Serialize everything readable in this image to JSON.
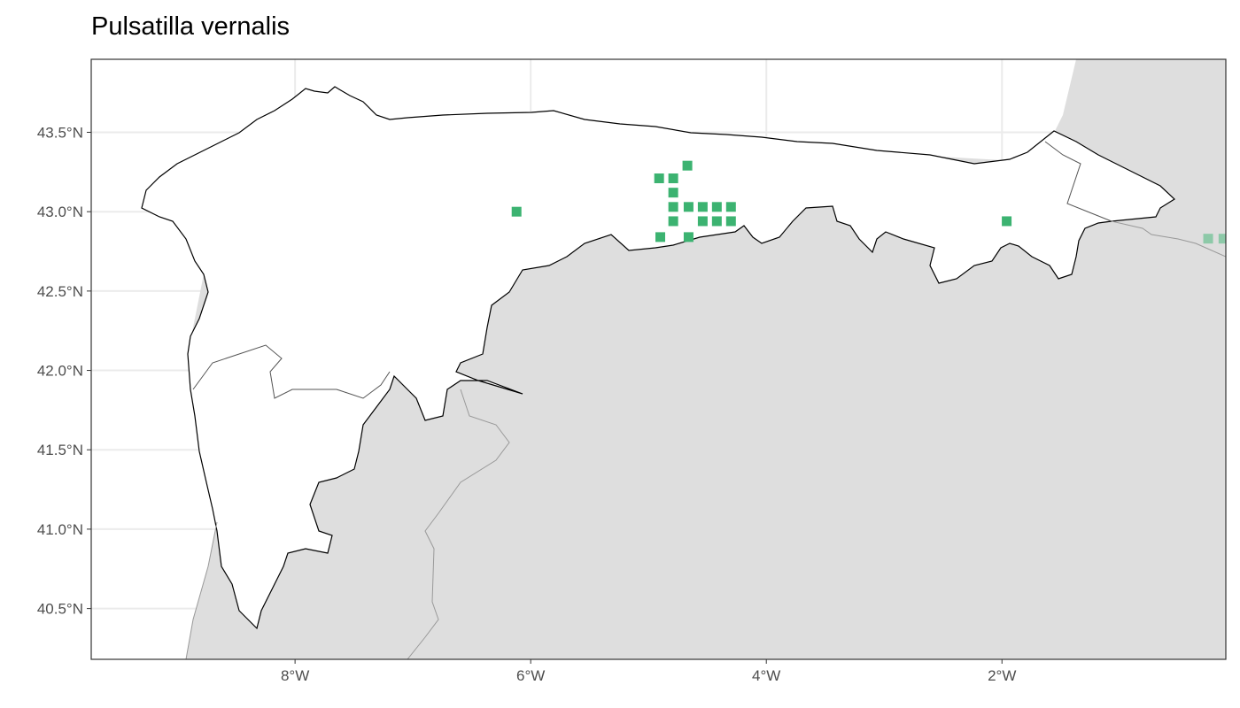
{
  "title": "Pulsatilla vernalis",
  "chart_data": {
    "type": "scatter",
    "title": "Pulsatilla vernalis",
    "xlabel": "",
    "ylabel": "",
    "xlim": [
      -9.73,
      -0.1
    ],
    "ylim": [
      40.18,
      43.96
    ],
    "grid": true,
    "x_ticks": [
      {
        "value": -8,
        "label": "8°W"
      },
      {
        "value": -6,
        "label": "6°W"
      },
      {
        "value": -4,
        "label": "4°W"
      },
      {
        "value": -2,
        "label": "2°W"
      }
    ],
    "y_ticks": [
      {
        "value": 43.5,
        "label": "43.5°N"
      },
      {
        "value": 43.0,
        "label": "43.0°N"
      },
      {
        "value": 42.5,
        "label": "42.5°N"
      },
      {
        "value": 42.0,
        "label": "42.0°N"
      },
      {
        "value": 41.5,
        "label": "41.5°N"
      },
      {
        "value": 41.0,
        "label": "41.0°N"
      },
      {
        "value": 40.5,
        "label": "40.5°N"
      }
    ],
    "point_color": "#3cb371",
    "land_color": "#dedede",
    "points": [
      {
        "lon": -6.12,
        "lat": 43.0
      },
      {
        "lon": -4.67,
        "lat": 43.29
      },
      {
        "lon": -4.91,
        "lat": 43.21
      },
      {
        "lon": -4.79,
        "lat": 43.21
      },
      {
        "lon": -4.79,
        "lat": 43.12
      },
      {
        "lon": -4.79,
        "lat": 43.03
      },
      {
        "lon": -4.66,
        "lat": 43.03
      },
      {
        "lon": -4.54,
        "lat": 43.03
      },
      {
        "lon": -4.42,
        "lat": 43.03
      },
      {
        "lon": -4.3,
        "lat": 43.03
      },
      {
        "lon": -4.79,
        "lat": 42.94
      },
      {
        "lon": -4.54,
        "lat": 42.94
      },
      {
        "lon": -4.42,
        "lat": 42.94
      },
      {
        "lon": -4.3,
        "lat": 42.94
      },
      {
        "lon": -4.9,
        "lat": 42.84
      },
      {
        "lon": -4.66,
        "lat": 42.84
      },
      {
        "lon": -1.96,
        "lat": 42.94
      },
      {
        "lon": -0.25,
        "lat": 42.83,
        "faded": true
      },
      {
        "lon": -0.12,
        "lat": 42.83,
        "faded": true
      }
    ]
  }
}
